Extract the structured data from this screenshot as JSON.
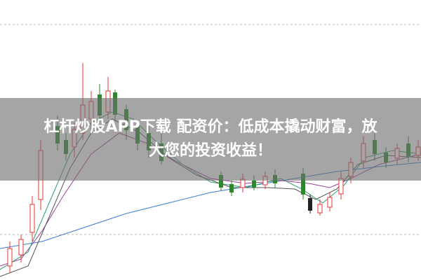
{
  "banner": {
    "lines": [
      "杠杆炒股APP下载 配资价：低成本撬动财富，放",
      "大您的投资收益！"
    ]
  }
}
